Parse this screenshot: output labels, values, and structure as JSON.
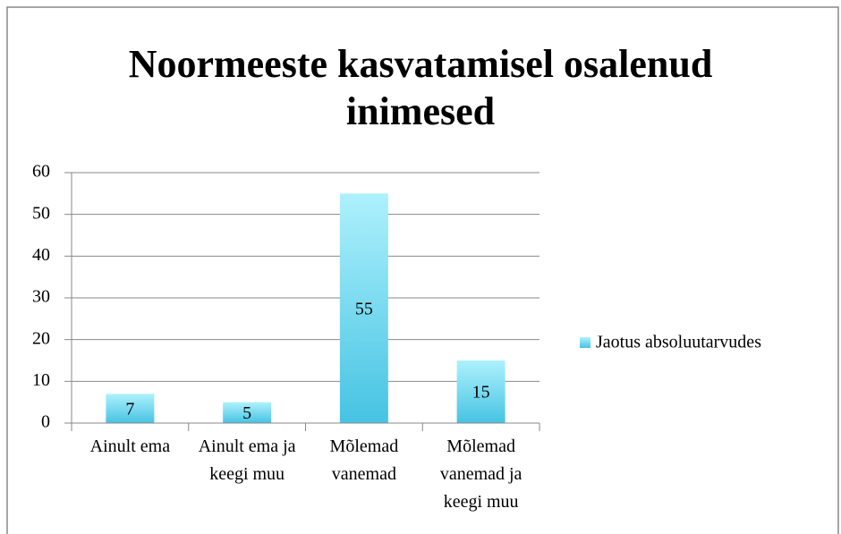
{
  "chart_data": {
    "type": "bar",
    "title": "Noormeeste kasvatamisel osalenud inimesed",
    "categories": [
      "Ainult ema",
      "Ainult ema ja keegi muu",
      "Mõlemad vanemad",
      "Mõlemad vanemad ja keegi muu"
    ],
    "series": [
      {
        "name": "Jaotus absoluutarvudes",
        "color": "#46c3e3",
        "values": [
          7,
          5,
          55,
          15
        ]
      }
    ],
    "ylim": [
      0,
      60
    ],
    "yticks": [
      0,
      10,
      20,
      30,
      40,
      50,
      60
    ],
    "grid": true,
    "legend": "right"
  }
}
